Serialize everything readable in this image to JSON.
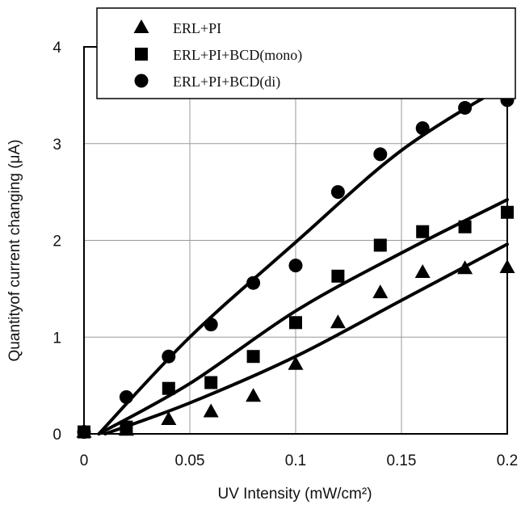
{
  "chart_data": {
    "type": "scatter",
    "title": "",
    "xlabel": "UV Intensity (mW/cm²)",
    "ylabel": "Quantityof current changing (μA)",
    "xlim": [
      0,
      0.2
    ],
    "ylim": [
      0,
      4
    ],
    "x_ticks": [
      "0",
      "0.05",
      "0.1",
      "0.15",
      "0.2"
    ],
    "x_tick_values": [
      0,
      0.05,
      0.1,
      0.15,
      0.2
    ],
    "y_ticks": [
      "0",
      "1",
      "2",
      "3",
      "4"
    ],
    "y_tick_values": [
      0,
      1,
      2,
      3,
      4
    ],
    "grid": true,
    "legend_position": "top",
    "series": [
      {
        "name": "ERL+PI",
        "marker": "triangle",
        "x": [
          0,
          0.02,
          0.04,
          0.06,
          0.08,
          0.1,
          0.12,
          0.14,
          0.16,
          0.18,
          0.2
        ],
        "y": [
          0.02,
          0.04,
          0.15,
          0.23,
          0.39,
          0.72,
          1.15,
          1.46,
          1.67,
          1.71,
          1.72
        ],
        "fit": [
          [
            0.01,
            0.0
          ],
          [
            0.05,
            0.32
          ],
          [
            0.1,
            0.8
          ],
          [
            0.15,
            1.38
          ],
          [
            0.2,
            1.96
          ]
        ]
      },
      {
        "name": "ERL+PI+BCD(mono)",
        "marker": "square",
        "x": [
          0,
          0.02,
          0.04,
          0.06,
          0.08,
          0.1,
          0.12,
          0.14,
          0.16,
          0.18,
          0.2
        ],
        "y": [
          0.02,
          0.07,
          0.47,
          0.53,
          0.8,
          1.15,
          1.63,
          1.95,
          2.09,
          2.14,
          2.29
        ],
        "fit": [
          [
            0.007,
            0.0
          ],
          [
            0.05,
            0.52
          ],
          [
            0.1,
            1.27
          ],
          [
            0.15,
            1.87
          ],
          [
            0.2,
            2.42
          ]
        ]
      },
      {
        "name": "ERL+PI+BCD(di)",
        "marker": "circle",
        "x": [
          0,
          0.02,
          0.04,
          0.06,
          0.08,
          0.1,
          0.12,
          0.14,
          0.16,
          0.18,
          0.2
        ],
        "y": [
          0.02,
          0.38,
          0.8,
          1.13,
          1.56,
          1.74,
          2.5,
          2.89,
          3.16,
          3.37,
          3.45
        ],
        "fit": [
          [
            0.007,
            0.0
          ],
          [
            0.05,
            1.0
          ],
          [
            0.1,
            1.98
          ],
          [
            0.15,
            2.93
          ],
          [
            0.2,
            3.62
          ]
        ]
      }
    ]
  }
}
